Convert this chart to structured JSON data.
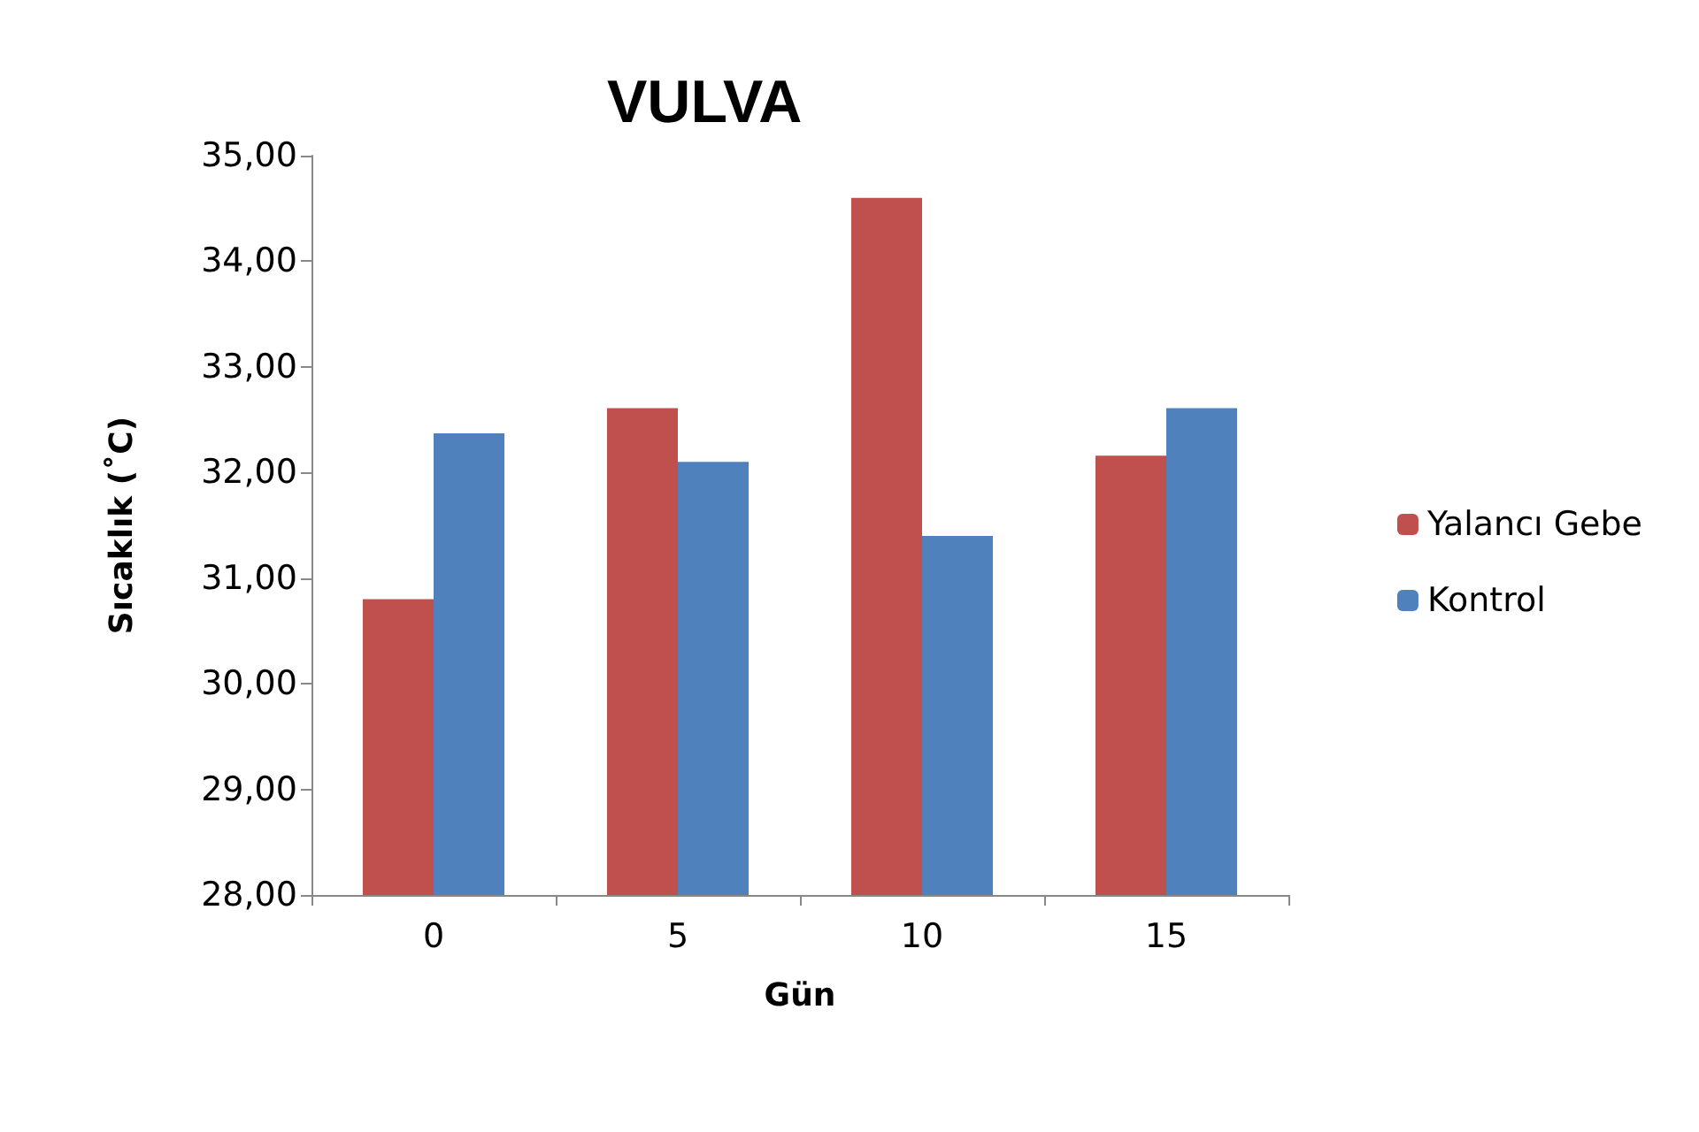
{
  "chart_data": {
    "type": "bar",
    "title": "VULVA",
    "xlabel": "Gün",
    "ylabel": "Sıcaklık (˚C)",
    "categories": [
      "0",
      "5",
      "10",
      "15"
    ],
    "series": [
      {
        "name": "Yalancı Gebe",
        "color": "#c0504d",
        "values": [
          30.8,
          32.61,
          34.6,
          32.16
        ]
      },
      {
        "name": "Kontrol",
        "color": "#4f81bd",
        "values": [
          32.37,
          32.1,
          31.4,
          32.61
        ]
      }
    ],
    "ylim": [
      28,
      35
    ],
    "yticks": [
      {
        "value": 28,
        "label": "28,00"
      },
      {
        "value": 29,
        "label": "29,00"
      },
      {
        "value": 30,
        "label": "30,00"
      },
      {
        "value": 31,
        "label": "31,00"
      },
      {
        "value": 32,
        "label": "32,00"
      },
      {
        "value": 33,
        "label": "33,00"
      },
      {
        "value": 34,
        "label": "34,00"
      },
      {
        "value": 35,
        "label": "35,00"
      }
    ],
    "grid": false,
    "legend": "right"
  }
}
